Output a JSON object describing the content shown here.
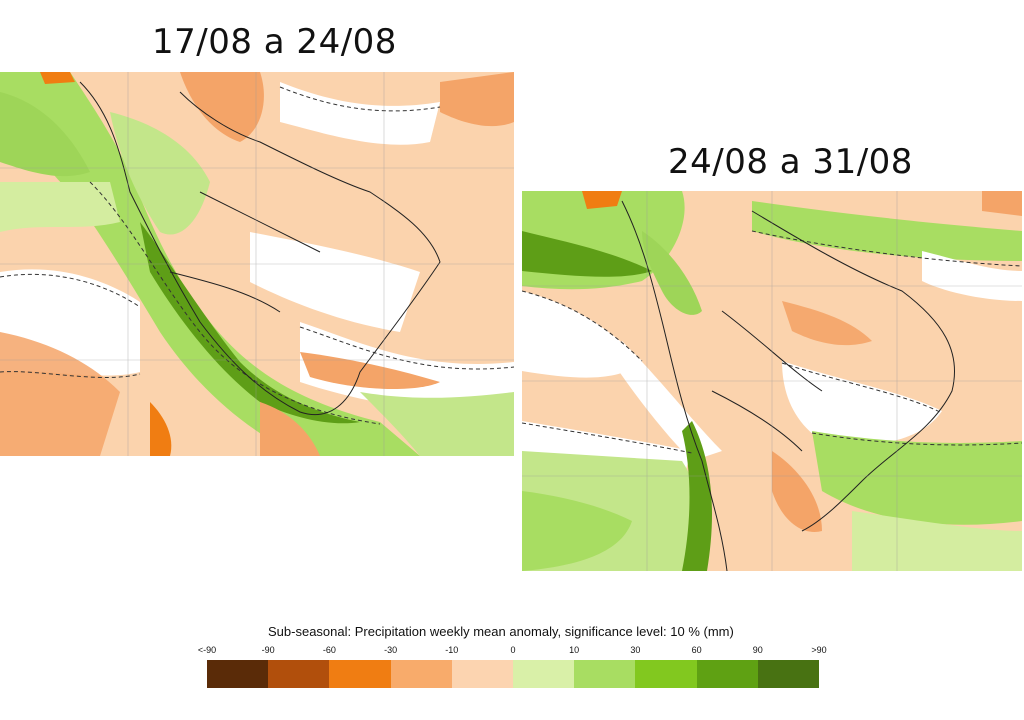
{
  "panels": [
    {
      "title": "17/08 a 24/08"
    },
    {
      "title": "24/08 a 31/08"
    }
  ],
  "legend": {
    "title": "Sub-seasonal: Precipitation weekly mean anomaly, significance level: 10 % (mm)",
    "ticks": [
      "<-90",
      "-90",
      "-60",
      "-30",
      "-10",
      "0",
      "10",
      "30",
      "60",
      "90",
      ">90"
    ],
    "colors": [
      "#5a2b08",
      "#b14f0c",
      "#f07d12",
      "#f8ab6b",
      "#fcd4b0",
      "#d9f0a8",
      "#a8dd62",
      "#82c81f",
      "#5fa113",
      "#487212"
    ]
  },
  "colors": {
    "background": "#ffffff",
    "map_base": "#fbd3ad",
    "dry_strong": "#f4a468",
    "neutral_white": "#ffffff",
    "wet_light": "#d4eda0",
    "wet_mid": "#9ed558",
    "wet_strong": "#5e9e17"
  }
}
